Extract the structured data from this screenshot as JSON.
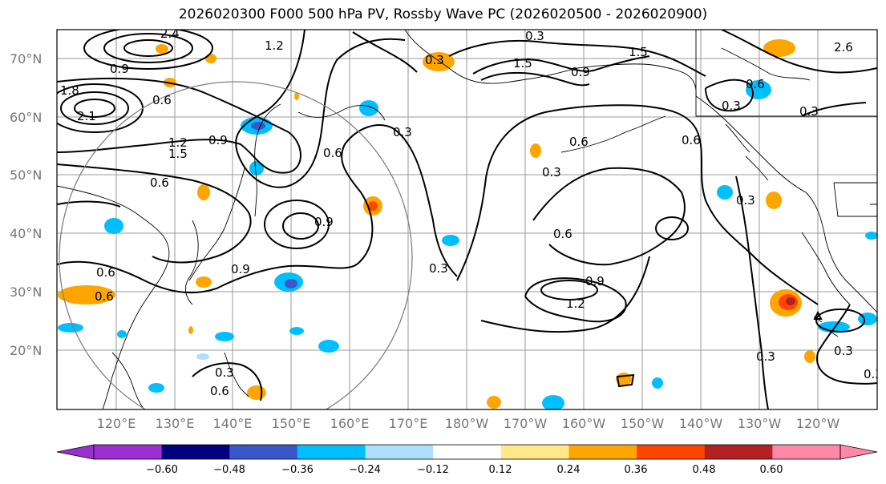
{
  "title": "2026020300 F000 500 hPa PV, Rossby Wave PC (2026020500 - 2026020900)",
  "lat_labels": [
    "70°N",
    "60°N",
    "50°N",
    "40°N",
    "30°N",
    "20°N"
  ],
  "lon_labels": [
    "120°E",
    "130°E",
    "140°E",
    "150°E",
    "160°E",
    "170°E",
    "180°W",
    "170°W",
    "160°W",
    "150°W",
    "140°W",
    "130°W",
    "120°W"
  ],
  "contour_labels": [
    "0.3",
    "0.6",
    "0.9",
    "1.2",
    "1.5",
    "1.8",
    "2.1",
    "2.4",
    "2.6"
  ],
  "colorbar": {
    "ticks": [
      "−0.60",
      "−0.48",
      "−0.36",
      "−0.24",
      "−0.12",
      "0.12",
      "0.24",
      "0.36",
      "0.48",
      "0.60"
    ],
    "colors": [
      "#9b30d0",
      "#000080",
      "#3a56c8",
      "#00bfff",
      "#afdfff",
      "#ffffff",
      "#ffe88a",
      "#ffa500",
      "#ff4500",
      "#b22222",
      "#ff88a8"
    ]
  }
}
